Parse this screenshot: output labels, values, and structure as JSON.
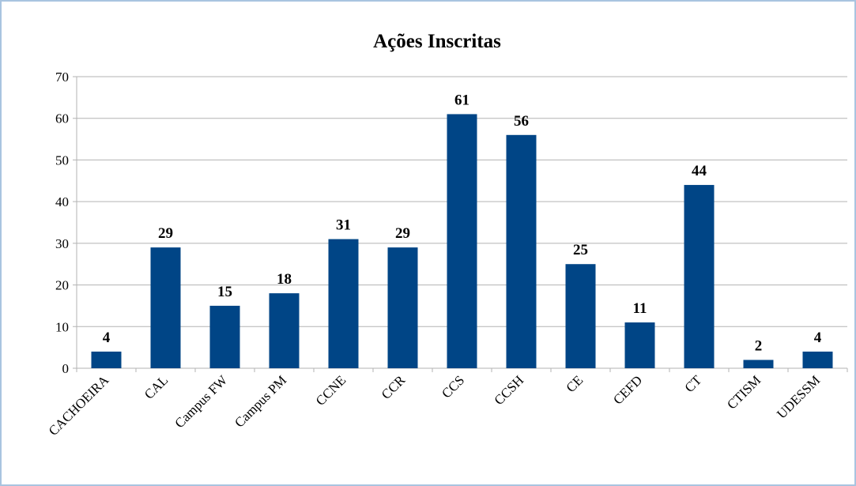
{
  "chart_data": {
    "type": "bar",
    "title": "Ações Inscritas",
    "categories": [
      "CACHOEIRA",
      "CAL",
      "Campus FW",
      "Campus PM",
      "CCNE",
      "CCR",
      "CCS",
      "CCSH",
      "CE",
      "CEFD",
      "CT",
      "CTISM",
      "UDESSM"
    ],
    "values": [
      4,
      29,
      15,
      18,
      31,
      29,
      61,
      56,
      25,
      11,
      44,
      2,
      4
    ],
    "color": "#004586",
    "ylim": [
      0,
      70
    ],
    "yticks": [
      0,
      10,
      20,
      30,
      40,
      50,
      60,
      70
    ],
    "grid": true
  }
}
